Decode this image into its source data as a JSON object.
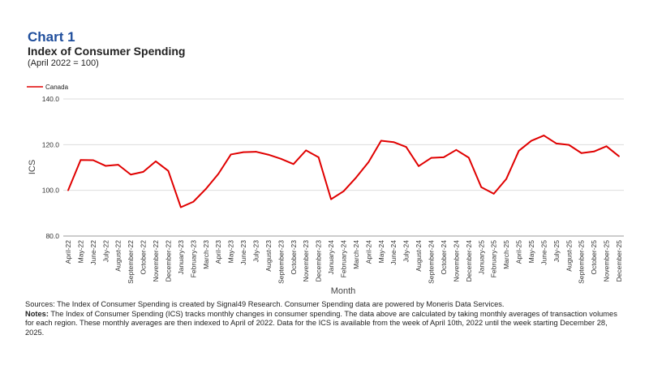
{
  "header": {
    "chart_label": "Chart 1",
    "title": "Index of Consumer Spending",
    "subtitle": "(April 2022 = 100)"
  },
  "chart_data": {
    "type": "line",
    "xlabel": "Month",
    "ylabel": "ICS",
    "ylim": [
      80,
      140
    ],
    "yticks": [
      "80.0",
      "100.0",
      "120.0",
      "140.0"
    ],
    "grid": true,
    "legend_position": "top-left",
    "categories": [
      "April-22",
      "May-22",
      "June-22",
      "July-22",
      "August-22",
      "September-22",
      "October-22",
      "November-22",
      "December-22",
      "January-23",
      "February-23",
      "March-23",
      "April-23",
      "May-23",
      "June-23",
      "July-23",
      "August-23",
      "September-23",
      "October-23",
      "November-23",
      "December-23",
      "January-24",
      "February-24",
      "March-24",
      "April-24",
      "May-24",
      "June-24",
      "July-24",
      "August-24",
      "September-24",
      "October-24",
      "November-24",
      "December-24",
      "January-25",
      "February-25",
      "March-25",
      "April-25",
      "May-25",
      "June-25",
      "July-25",
      "August-25",
      "September-25",
      "October-25",
      "November-25",
      "December-25"
    ],
    "series": [
      {
        "name": "Canada",
        "color": "#e00000",
        "values": [
          100.0,
          113.3,
          113.2,
          110.7,
          111.2,
          106.9,
          108.1,
          112.7,
          108.5,
          92.6,
          95.0,
          100.6,
          107.2,
          115.7,
          116.7,
          116.9,
          115.6,
          113.8,
          111.5,
          117.5,
          114.5,
          96.1,
          99.6,
          105.6,
          112.4,
          121.7,
          121.1,
          119.0,
          110.6,
          114.2,
          114.5,
          117.7,
          114.3,
          101.4,
          98.5,
          105.0,
          117.3,
          121.7,
          124.0,
          120.5,
          119.9,
          116.3,
          117.0,
          119.3,
          114.9
        ]
      }
    ]
  },
  "footer": {
    "sources": "Sources: The Index of Consumer Spending is created by Signal49 Research. Consumer Spending data are powered by Moneris Data Services.",
    "notes_label": "Notes:",
    "notes": " The Index of Consumer Spending (ICS) tracks monthly changes in consumer spending. The data above are calculated by taking monthly averages of transaction volumes for each region. These monthly averages are then indexed to April of 2022. Data for the ICS is available from the week of April 10th, 2022 until the week starting December 28, 2025."
  }
}
